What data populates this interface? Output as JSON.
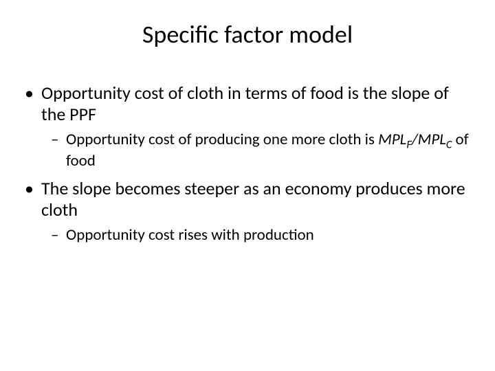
{
  "title": "Specific factor model",
  "bullets": {
    "b1": "Opportunity cost of cloth in terms of food is the slope of the PPF",
    "b1a_pre": "Opportunity cost of producing one more cloth is ",
    "b1a_mpl1": "MPL",
    "b1a_sub1": "F",
    "b1a_slash": "/",
    "b1a_mpl2": "MPL",
    "b1a_sub2": "C",
    "b1a_post": " of food",
    "b2": "The slope becomes steeper as an economy produces more cloth",
    "b2a": "Opportunity cost rises with production"
  },
  "style": {
    "background": "#ffffff",
    "text_color": "#000000",
    "title_fontsize": 36,
    "bullet1_fontsize": 26,
    "bullet2_fontsize": 23
  }
}
